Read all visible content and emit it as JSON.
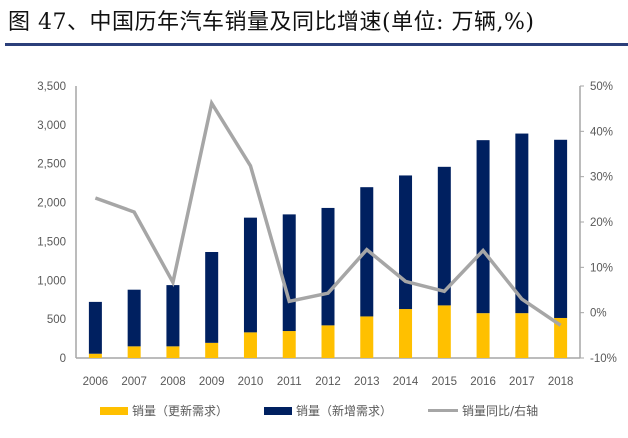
{
  "title": "图 47、中国历年汽车销量及同比增速(单位: 万辆,%)",
  "colors": {
    "renewal": "#FFC000",
    "new_demand": "#002060",
    "yoy_line": "#A6A6A6",
    "axis": "#A6A6A6",
    "title_rule": "#2b3f7a"
  },
  "legend": {
    "renewal": "销量（更新需求）",
    "new_demand": "销量（新增需求）",
    "yoy": "销量同比/右轴"
  },
  "chart_data": {
    "type": "bar",
    "stacked": true,
    "title": "图 47、中国历年汽车销量及同比增速(单位: 万辆,%)",
    "xlabel": "",
    "ylabel": "万辆",
    "y2label": "%",
    "ylim": [
      0,
      3500
    ],
    "y2lim": [
      -10,
      50
    ],
    "grid": false,
    "legend_position": "bottom",
    "categories": [
      "2006",
      "2007",
      "2008",
      "2009",
      "2010",
      "2011",
      "2012",
      "2013",
      "2014",
      "2015",
      "2016",
      "2017",
      "2018"
    ],
    "yticks": [
      "0",
      "500",
      "1,000",
      "1,500",
      "2,000",
      "2,500",
      "3,000",
      "3,500"
    ],
    "y2ticks": [
      "-10%",
      "0%",
      "10%",
      "20%",
      "30%",
      "40%",
      "50%"
    ],
    "series": [
      {
        "name": "销量（更新需求）",
        "type": "bar",
        "axis": "left",
        "values": [
          55,
          150,
          150,
          195,
          330,
          347,
          420,
          535,
          630,
          677,
          577,
          577,
          515
        ]
      },
      {
        "name": "销量（新增需求）",
        "type": "bar",
        "axis": "left",
        "values": [
          667,
          729,
          788,
          1169,
          1476,
          1501,
          1511,
          1663,
          1719,
          1783,
          2226,
          2311,
          2293
        ]
      },
      {
        "name": "销量同比/右轴",
        "type": "line",
        "axis": "right",
        "values": [
          25.3,
          22.2,
          6.7,
          46.2,
          32.4,
          2.5,
          4.3,
          13.9,
          6.9,
          4.7,
          13.7,
          3.0,
          -2.8
        ]
      }
    ],
    "totals": [
      722,
      879,
      938,
      1364,
      1806,
      1848,
      1931,
      2198,
      2349,
      2460,
      2803,
      2888,
      2808
    ]
  }
}
